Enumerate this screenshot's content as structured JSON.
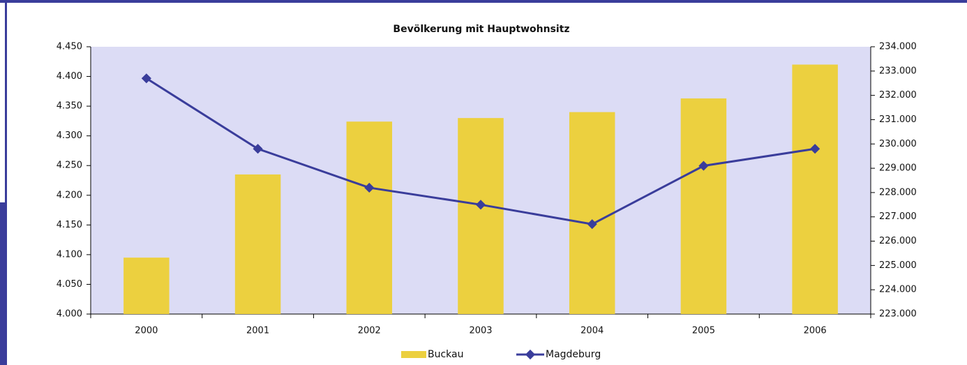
{
  "chart_data": {
    "type": "bar-line",
    "title": "Bevölkerung mit Hauptwohnsitz",
    "categories": [
      "2000",
      "2001",
      "2002",
      "2003",
      "2004",
      "2005",
      "2006"
    ],
    "series": [
      {
        "name": "Buckau",
        "type": "bar",
        "color": "#ecd03f",
        "axis": "y",
        "values": [
          4095,
          4235,
          4324,
          4330,
          4340,
          4363,
          4420
        ]
      },
      {
        "name": "Magdeburg",
        "type": "line",
        "color": "#3a3d9b",
        "axis": "y2",
        "values": [
          232700,
          229800,
          228200,
          227500,
          226700,
          229100,
          229800
        ]
      }
    ],
    "ylim": [
      4000,
      4450
    ],
    "yticks": [
      {
        "value": 4000,
        "label": "4.000"
      },
      {
        "value": 4050,
        "label": "4.050"
      },
      {
        "value": 4100,
        "label": "4.100"
      },
      {
        "value": 4150,
        "label": "4.150"
      },
      {
        "value": 4200,
        "label": "4.200"
      },
      {
        "value": 4250,
        "label": "4.250"
      },
      {
        "value": 4300,
        "label": "4.300"
      },
      {
        "value": 4350,
        "label": "4.350"
      },
      {
        "value": 4400,
        "label": "4.400"
      },
      {
        "value": 4450,
        "label": "4.450"
      }
    ],
    "y2lim": [
      223000,
      234000
    ],
    "y2ticks": [
      {
        "value": 223000,
        "label": "223.000"
      },
      {
        "value": 224000,
        "label": "224.000"
      },
      {
        "value": 225000,
        "label": "225.000"
      },
      {
        "value": 226000,
        "label": "226.000"
      },
      {
        "value": 227000,
        "label": "227.000"
      },
      {
        "value": 228000,
        "label": "228.000"
      },
      {
        "value": 229000,
        "label": "229.000"
      },
      {
        "value": 230000,
        "label": "230.000"
      },
      {
        "value": 231000,
        "label": "231.000"
      },
      {
        "value": 232000,
        "label": "232.000"
      },
      {
        "value": 233000,
        "label": "233.000"
      },
      {
        "value": 234000,
        "label": "234.000"
      }
    ],
    "grid": false,
    "legend": "bottom"
  }
}
